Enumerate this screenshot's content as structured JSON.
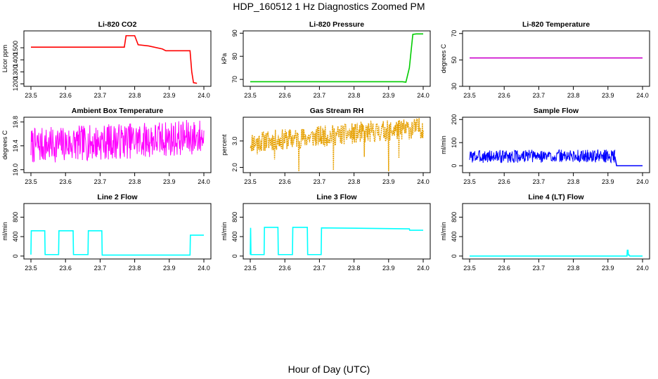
{
  "title": "HDP_160512  1 Hz Diagnostics Zoomed PM",
  "xlabel": "Hour of Day (UTC)",
  "chart_data": [
    {
      "type": "line",
      "title": "Li-820 CO2",
      "ylabel": "Licor ppm",
      "color": "#ff0000",
      "xlim": [
        23.5,
        24.0
      ],
      "xticks": [
        "23.5",
        "23.6",
        "23.7",
        "23.8",
        "23.9",
        "24.0"
      ],
      "ylim": [
        1180,
        1640
      ],
      "yticks": [
        "1200",
        "1300",
        "1400",
        "1500"
      ],
      "series": [
        {
          "x": [
            23.5,
            23.76,
            23.77,
            23.775,
            23.8,
            23.81,
            23.84,
            23.88,
            23.89,
            23.94,
            23.95,
            23.96,
            23.965,
            23.97,
            23.98
          ],
          "y": [
            1505,
            1505,
            1505,
            1600,
            1600,
            1525,
            1515,
            1490,
            1475,
            1475,
            1475,
            1475,
            1300,
            1210,
            1205
          ]
        }
      ]
    },
    {
      "type": "line",
      "title": "Li-820 Pressure",
      "ylabel": "kPa",
      "color": "#00cc00",
      "xlim": [
        23.5,
        24.0
      ],
      "xticks": [
        "23.5",
        "23.6",
        "23.7",
        "23.8",
        "23.9",
        "24.0"
      ],
      "ylim": [
        67,
        91
      ],
      "yticks": [
        "70",
        "80",
        "90"
      ],
      "series": [
        {
          "x": [
            23.5,
            23.9,
            23.94,
            23.95,
            23.96,
            23.97,
            23.98,
            24.0
          ],
          "y": [
            69,
            69,
            69,
            68.8,
            75,
            89.5,
            89.7,
            89.7
          ]
        }
      ]
    },
    {
      "type": "line",
      "title": "Li-820 Temperature",
      "ylabel": "degrees C",
      "color": "#cc00cc",
      "xlim": [
        23.5,
        24.0
      ],
      "xticks": [
        "23.5",
        "23.6",
        "23.7",
        "23.8",
        "23.9",
        "24.0"
      ],
      "ylim": [
        30,
        72
      ],
      "yticks": [
        "30",
        "50",
        "70"
      ],
      "series": [
        {
          "x": [
            23.5,
            24.0
          ],
          "y": [
            51.5,
            51.5
          ]
        }
      ]
    },
    {
      "type": "line",
      "title": "Ambient Box Temperature",
      "ylabel": "degrees C",
      "color": "#ff00ff",
      "xlim": [
        23.5,
        24.0
      ],
      "xticks": [
        "23.5",
        "23.6",
        "23.7",
        "23.8",
        "23.9",
        "24.0"
      ],
      "ylim": [
        18.95,
        19.88
      ],
      "yticks": [
        "19.0",
        "19.4",
        "19.8"
      ],
      "series": [
        {
          "noise": {
            "from": 23.5,
            "to": 24.0,
            "mean_start": 19.4,
            "mean_end": 19.55,
            "amplitude": 0.3,
            "seed": 7
          }
        }
      ]
    },
    {
      "type": "line",
      "title": "Gas Stream RH",
      "ylabel": "percent",
      "color": "#e6a000",
      "xlim": [
        23.5,
        24.0
      ],
      "xticks": [
        "23.5",
        "23.6",
        "23.7",
        "23.8",
        "23.9",
        "24.0"
      ],
      "ylim": [
        1.8,
        3.9
      ],
      "yticks": [
        "2.0",
        "3.0"
      ],
      "series": [
        {
          "noise": {
            "from": 23.5,
            "to": 24.0,
            "mean_start": 2.95,
            "mean_end": 3.5,
            "amplitude": 0.4,
            "seed": 11,
            "spikes": [
              [
                23.64,
                1.85
              ],
              [
                23.74,
                1.9
              ],
              [
                23.9,
                1.85
              ],
              [
                23.57,
                2.3
              ],
              [
                23.52,
                2.5
              ],
              [
                23.83,
                2.4
              ],
              [
                23.93,
                2.35
              ]
            ]
          }
        }
      ]
    },
    {
      "type": "line",
      "title": "Sample Flow",
      "ylabel": "ml/min",
      "color": "#0000ff",
      "xlim": [
        23.5,
        24.0
      ],
      "xticks": [
        "23.5",
        "23.6",
        "23.7",
        "23.8",
        "23.9",
        "24.0"
      ],
      "ylim": [
        -30,
        210
      ],
      "yticks": [
        "0",
        "100",
        "200"
      ],
      "series": [
        {
          "noise": {
            "from": 23.5,
            "to": 23.92,
            "mean_start": 40,
            "mean_end": 42,
            "amplitude": 28,
            "seed": 3
          }
        },
        {
          "x": [
            23.92,
            23.925,
            24.0
          ],
          "y": [
            40,
            0,
            0
          ]
        }
      ]
    },
    {
      "type": "line",
      "title": "Line 2 Flow",
      "ylabel": "ml/min",
      "color": "#00ffff",
      "xlim": [
        23.5,
        24.0
      ],
      "xticks": [
        "23.5",
        "23.6",
        "23.7",
        "23.8",
        "23.9",
        "24.0"
      ],
      "ylim": [
        -60,
        1080
      ],
      "yticks": [
        "0",
        "400",
        "800"
      ],
      "series": [
        {
          "x": [
            23.5,
            23.501,
            23.54,
            23.541,
            23.58,
            23.581,
            23.622,
            23.623,
            23.665,
            23.666,
            23.705,
            23.706,
            23.75,
            23.8,
            23.96,
            23.961,
            24.0
          ],
          "y": [
            30,
            520,
            520,
            30,
            30,
            520,
            520,
            30,
            30,
            520,
            520,
            20,
            20,
            20,
            20,
            430,
            430
          ]
        }
      ]
    },
    {
      "type": "line",
      "title": "Line 3 Flow",
      "ylabel": "ml/min",
      "color": "#00ffff",
      "xlim": [
        23.5,
        24.0
      ],
      "xticks": [
        "23.5",
        "23.6",
        "23.7",
        "23.8",
        "23.9",
        "24.0"
      ],
      "ylim": [
        -60,
        1080
      ],
      "yticks": [
        "0",
        "400",
        "800"
      ],
      "series": [
        {
          "x": [
            23.5,
            23.501,
            23.502,
            23.54,
            23.541,
            23.58,
            23.581,
            23.622,
            23.623,
            23.665,
            23.666,
            23.705,
            23.706,
            23.96,
            23.961,
            24.0
          ],
          "y": [
            30,
            580,
            30,
            30,
            590,
            590,
            30,
            30,
            590,
            590,
            30,
            30,
            580,
            560,
            530,
            530
          ]
        }
      ]
    },
    {
      "type": "line",
      "title": "Line 4 (LT) Flow",
      "ylabel": "ml/min",
      "color": "#00ffff",
      "xlim": [
        23.5,
        24.0
      ],
      "xticks": [
        "23.5",
        "23.6",
        "23.7",
        "23.8",
        "23.9",
        "24.0"
      ],
      "ylim": [
        -60,
        1080
      ],
      "yticks": [
        "0",
        "400",
        "800"
      ],
      "series": [
        {
          "x": [
            23.5,
            23.955,
            23.956,
            23.958,
            23.959,
            23.962,
            23.963,
            24.0
          ],
          "y": [
            0,
            0,
            120,
            120,
            20,
            20,
            0,
            0
          ]
        }
      ]
    }
  ]
}
